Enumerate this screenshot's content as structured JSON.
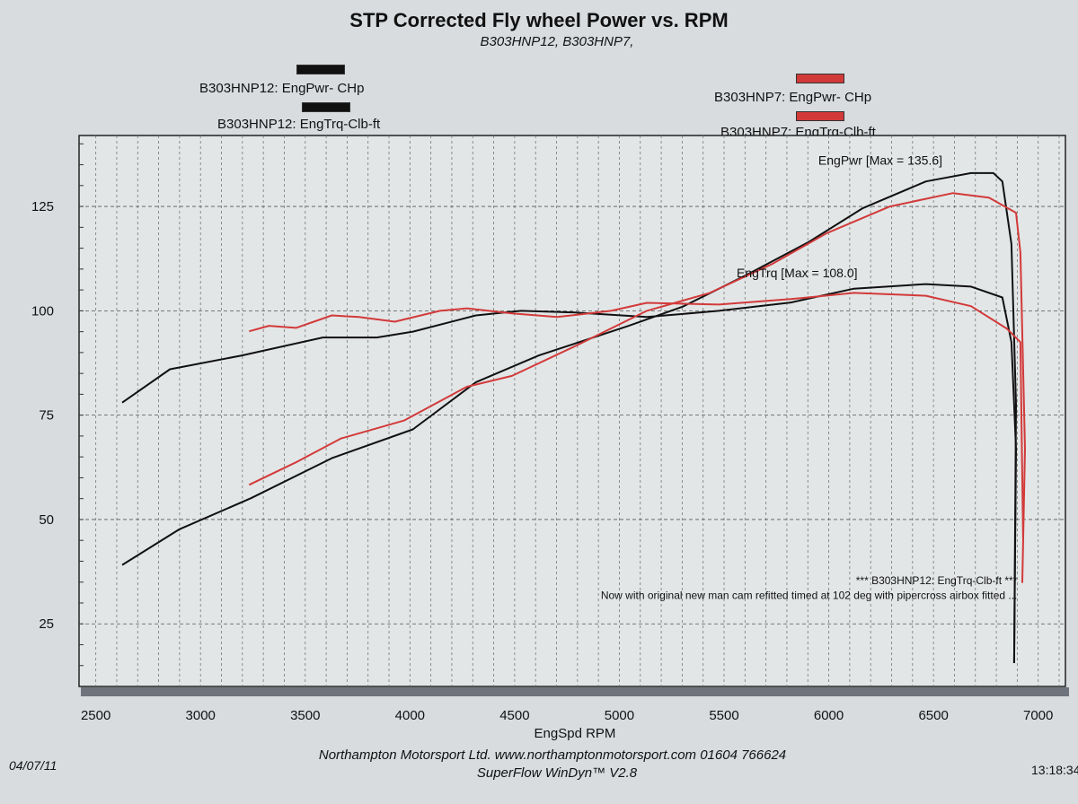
{
  "chart_data": {
    "type": "line",
    "title": "STP Corrected Fly wheel Power vs. RPM",
    "subtitle": "B303HNP12, B303HNP7,",
    "xlabel": "EngSpd  RPM",
    "ylabel": "",
    "xlim": [
      2420,
      7130
    ],
    "ylim": [
      10,
      142
    ],
    "x_ticks": [
      2500,
      3000,
      3500,
      4000,
      4500,
      5000,
      5500,
      6000,
      6500,
      7000
    ],
    "y_ticks": [
      25,
      50,
      75,
      100,
      125
    ],
    "grid": true,
    "legend": [
      {
        "label": "B303HNP12: EngPwr- CHp",
        "color": "#111111",
        "placement": "top-left"
      },
      {
        "label": "B303HNP12: EngTrq-Clb-ft",
        "color": "#111111",
        "placement": "top-left"
      },
      {
        "label": "B303HNP7: EngPwr- CHp",
        "color": "#d23a3a",
        "placement": "top-right"
      },
      {
        "label": "B303HNP7: EngTrq-Clb-ft",
        "color": "#d23a3a",
        "placement": "top-right"
      }
    ],
    "series": [
      {
        "name": "B303HNP12: EngPwr- CHp",
        "color": "#111111",
        "x": [
          2626,
          2897,
          3241,
          3627,
          4014,
          4315,
          4616,
          5045,
          5303,
          5604,
          5905,
          6163,
          6464,
          6679,
          6786,
          6829,
          6872,
          6894,
          6885
        ],
        "y": [
          39.1,
          47.6,
          55.1,
          64.7,
          71.6,
          82.9,
          89.3,
          96.4,
          101,
          108.5,
          116.5,
          124.6,
          131,
          133,
          133,
          131,
          116,
          77.6,
          15.6
        ]
      },
      {
        "name": "B303HNP12: EngTrq-Clb-ft",
        "color": "#111111",
        "x": [
          2626,
          2854,
          3198,
          3584,
          3842,
          4014,
          4315,
          4530,
          4788,
          5131,
          5475,
          5819,
          6120,
          6464,
          6679,
          6829,
          6872,
          6894,
          6885
        ],
        "y": [
          78,
          86,
          89.3,
          93.6,
          93.6,
          95,
          98.9,
          100,
          99.6,
          98.5,
          100,
          102,
          105.3,
          106.4,
          105.8,
          103.2,
          92.5,
          66.9,
          15.6
        ]
      },
      {
        "name": "B303HNP7: EngPwr- CHp",
        "color": "#d23a3a",
        "x": [
          3232,
          3456,
          3670,
          3971,
          4272,
          4487,
          4788,
          5131,
          5432,
          5733,
          5991,
          6292,
          6593,
          6765,
          6894,
          6915,
          6937,
          6924
        ],
        "y": [
          58.3,
          63.7,
          69.4,
          73.7,
          81.8,
          84.4,
          91.5,
          100,
          104.3,
          111.3,
          118.6,
          125,
          128.2,
          127.1,
          123.5,
          113.9,
          66.9,
          34.8
        ]
      },
      {
        "name": "B303HNP7: EngTrq-Clb-ft",
        "color": "#d23a3a",
        "x": [
          3232,
          3327,
          3456,
          3627,
          3756,
          3928,
          4143,
          4272,
          4487,
          4702,
          4960,
          5131,
          5475,
          5819,
          6120,
          6464,
          6679,
          6851,
          6915,
          6928
        ],
        "y": [
          95.1,
          96.4,
          95.9,
          98.9,
          98.5,
          97.4,
          100,
          100.6,
          99.4,
          98.5,
          100,
          101.9,
          101.5,
          102.8,
          104.3,
          103.6,
          101.1,
          95.7,
          92.5,
          45.5
        ]
      }
    ],
    "annotations": [
      {
        "text": "EngPwr [Max = 135.6]",
        "x": 5950,
        "y": 135
      },
      {
        "text": "EngTrq [Max = 108.0]",
        "x": 5560,
        "y": 108
      },
      {
        "text": "*** B303HNP12: EngTrq-Clb-ft ***",
        "x": 6900,
        "y": 34.5
      },
      {
        "text": "Now with original new man cam refitted timed at 102 deg with pipercross airbox fitted  ...",
        "x": 6900,
        "y": 31
      }
    ]
  },
  "footer": {
    "company": "Northampton Motorsport Ltd. www.northamptonmotorsport.com 01604 766624",
    "software": "SuperFlow WinDyn™ V2.8",
    "date": "04/07/11",
    "time": "13:18:34"
  }
}
